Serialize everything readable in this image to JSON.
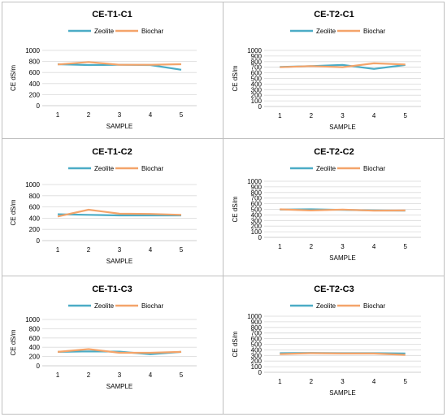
{
  "colors": {
    "zeolite": "#4bacc6",
    "biochar": "#f4a46a",
    "grid": "#d9d9d9"
  },
  "chart_data": [
    {
      "type": "line",
      "title": "CE-T1-C1",
      "xlabel": "SAMPLE",
      "ylabel": "CE dS/m",
      "categories": [
        "1",
        "2",
        "3",
        "4",
        "5"
      ],
      "ylim": [
        0,
        1000
      ],
      "yticks": [
        "0",
        "200",
        "400",
        "600",
        "800",
        "1000"
      ],
      "legend": "top-center",
      "grid": true,
      "series": [
        {
          "name": "Zeolite",
          "values": [
            750,
            735,
            740,
            735,
            650
          ]
        },
        {
          "name": "Biochar",
          "values": [
            745,
            790,
            740,
            740,
            750
          ]
        }
      ]
    },
    {
      "type": "line",
      "title": "CE-T2-C1",
      "xlabel": "SAMPLE",
      "ylabel": "CE dS/m",
      "categories": [
        "1",
        "2",
        "3",
        "4",
        "5"
      ],
      "ylim": [
        0,
        1000
      ],
      "yticks": [
        "0",
        "100",
        "200",
        "300",
        "400",
        "500",
        "600",
        "700",
        "800",
        "900",
        "1000"
      ],
      "legend": "top-center",
      "grid": true,
      "series": [
        {
          "name": "Zeolite",
          "values": [
            705,
            720,
            740,
            670,
            740
          ]
        },
        {
          "name": "Biochar",
          "values": [
            700,
            720,
            700,
            770,
            750
          ]
        }
      ]
    },
    {
      "type": "line",
      "title": "CE-T1-C2",
      "xlabel": "SAMPLE",
      "ylabel": "CE dS/m",
      "categories": [
        "1",
        "2",
        "3",
        "4",
        "5"
      ],
      "ylim": [
        0,
        1000
      ],
      "yticks": [
        "0",
        "200",
        "400",
        "600",
        "800",
        "1000"
      ],
      "legend": "top-center",
      "grid": true,
      "series": [
        {
          "name": "Zeolite",
          "values": [
            470,
            460,
            450,
            450,
            450
          ]
        },
        {
          "name": "Biochar",
          "values": [
            430,
            550,
            480,
            475,
            460
          ]
        }
      ]
    },
    {
      "type": "line",
      "title": "CE-T2-C2",
      "xlabel": "SAMPLE",
      "ylabel": "CE dS/m",
      "categories": [
        "1",
        "2",
        "3",
        "4",
        "5"
      ],
      "ylim": [
        0,
        1000
      ],
      "yticks": [
        "0",
        "100",
        "200",
        "300",
        "400",
        "500",
        "600",
        "700",
        "800",
        "900",
        "1000"
      ],
      "legend": "top-center",
      "grid": true,
      "series": [
        {
          "name": "Zeolite",
          "values": [
            495,
            500,
            490,
            480,
            475
          ]
        },
        {
          "name": "Biochar",
          "values": [
            500,
            480,
            495,
            475,
            480
          ]
        }
      ]
    },
    {
      "type": "line",
      "title": "CE-T1-C3",
      "xlabel": "SAMPLE",
      "ylabel": "CE dS/m",
      "categories": [
        "1",
        "2",
        "3",
        "4",
        "5"
      ],
      "ylim": [
        0,
        1000
      ],
      "yticks": [
        "0",
        "200",
        "400",
        "600",
        "800",
        "1000"
      ],
      "legend": "top-center",
      "grid": true,
      "series": [
        {
          "name": "Zeolite",
          "values": [
            300,
            310,
            305,
            250,
            300
          ]
        },
        {
          "name": "Biochar",
          "values": [
            300,
            360,
            280,
            280,
            300
          ]
        }
      ]
    },
    {
      "type": "line",
      "title": "CE-T2-C3",
      "xlabel": "SAMPLE",
      "ylabel": "CE dS/m",
      "categories": [
        "1",
        "2",
        "3",
        "4",
        "5"
      ],
      "ylim": [
        0,
        1000
      ],
      "yticks": [
        "0",
        "100",
        "200",
        "300",
        "400",
        "500",
        "600",
        "700",
        "800",
        "900",
        "1000"
      ],
      "legend": "top-center",
      "grid": true,
      "series": [
        {
          "name": "Zeolite",
          "values": [
            340,
            345,
            340,
            340,
            335
          ]
        },
        {
          "name": "Biochar",
          "values": [
            325,
            340,
            335,
            335,
            310
          ]
        }
      ]
    }
  ]
}
